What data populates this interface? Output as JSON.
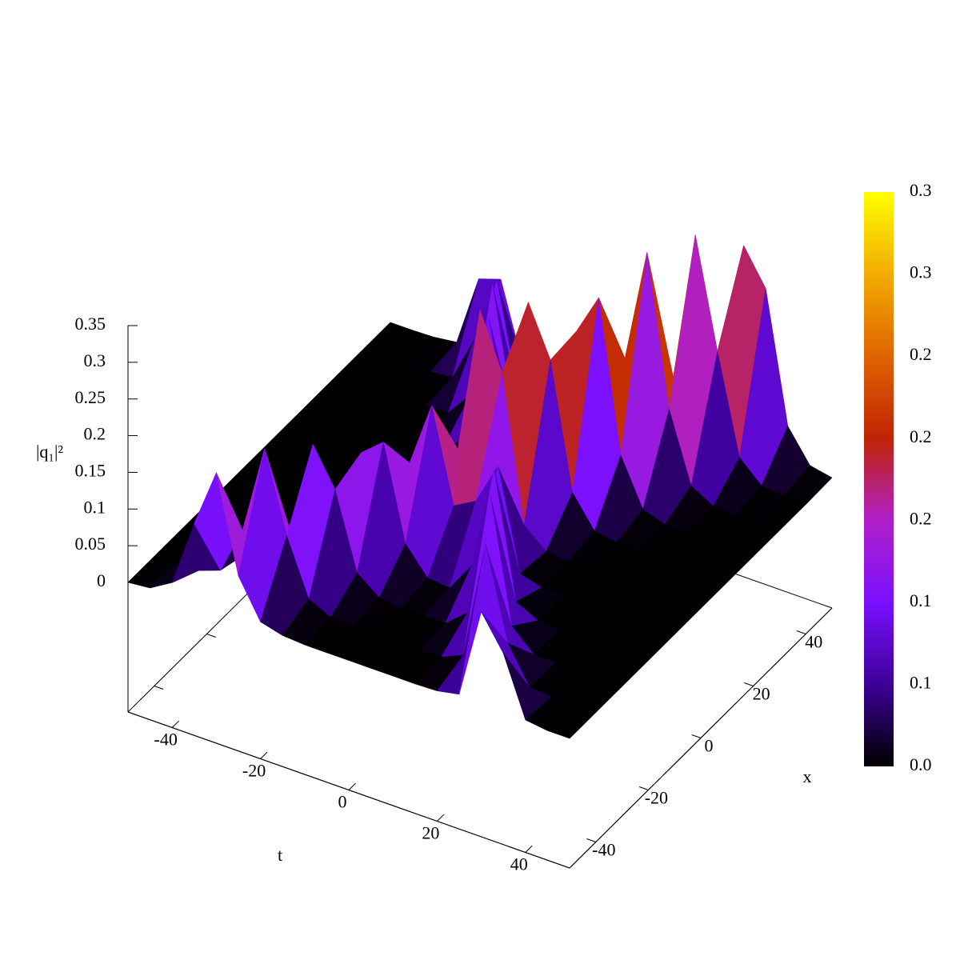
{
  "chart_data": {
    "type": "surface",
    "xlabel": "t",
    "ylabel": "x",
    "zlabel": "|q₁|²",
    "t": [
      -50,
      -45,
      -40,
      -35,
      -30,
      -25,
      -20,
      -15,
      -10,
      -5,
      0,
      5,
      10,
      15,
      20,
      25,
      30,
      35,
      40,
      45,
      50
    ],
    "x": [
      -50,
      -40,
      -30,
      -20,
      -10,
      0,
      10,
      20,
      30,
      40,
      50
    ],
    "z": [
      [
        0,
        0.003,
        0.021,
        0.112,
        0.192,
        0.062,
        0.01,
        0.002,
        0,
        0,
        0,
        0,
        0,
        0,
        0.001,
        0.007,
        0.13,
        0.084,
        0.004,
        0,
        0
      ],
      [
        0,
        0.001,
        0.002,
        0.013,
        0.078,
        0.2,
        0.092,
        0.016,
        0.002,
        0,
        0,
        0,
        0,
        0.001,
        0.014,
        0.176,
        0.052,
        0.002,
        0,
        0,
        0
      ],
      [
        0,
        0,
        0,
        0.001,
        0.007,
        0.05,
        0.181,
        0.13,
        0.027,
        0.004,
        0.001,
        0,
        0.001,
        0.026,
        0.2,
        0.029,
        0.001,
        0,
        0,
        0,
        0
      ],
      [
        0,
        0,
        0,
        0,
        0.001,
        0.005,
        0.032,
        0.145,
        0.17,
        0.042,
        0.006,
        0.003,
        0.044,
        0.186,
        0.016,
        0.001,
        0,
        0,
        0,
        0,
        0
      ],
      [
        0,
        0,
        0,
        0,
        0,
        0,
        0.003,
        0.02,
        0.106,
        0.195,
        0.069,
        0.086,
        0.144,
        0.008,
        0,
        0,
        0,
        0,
        0,
        0,
        0
      ],
      [
        0,
        0,
        0,
        0,
        0,
        0,
        0,
        0.002,
        0.016,
        0.1,
        0.3,
        0.225,
        0.028,
        0.003,
        0,
        0,
        0,
        0,
        0,
        0,
        0
      ],
      [
        0,
        0,
        0,
        0,
        0,
        0,
        0,
        0.001,
        0.012,
        0.173,
        0.137,
        0.286,
        0.218,
        0.048,
        0.006,
        0.001,
        0,
        0,
        0,
        0,
        0
      ],
      [
        0,
        0,
        0,
        0,
        0,
        0,
        0.001,
        0.021,
        0.2,
        0.035,
        0.009,
        0.048,
        0.222,
        0.278,
        0.074,
        0.011,
        0.001,
        0,
        0,
        0,
        0
      ],
      [
        0,
        0,
        0,
        0,
        0,
        0.001,
        0.036,
        0.196,
        0.02,
        0.001,
        0.001,
        0.004,
        0.03,
        0.16,
        0.315,
        0.112,
        0.018,
        0.001,
        0,
        0,
        0
      ],
      [
        0,
        0,
        0,
        0,
        0.003,
        0.066,
        0.157,
        0.01,
        0.001,
        0,
        0,
        0,
        0.001,
        0.017,
        0.109,
        0.314,
        0.166,
        0.032,
        0.004,
        0.001,
        0
      ],
      [
        0,
        0,
        0.001,
        0.005,
        0.102,
        0.112,
        0.006,
        0.001,
        0,
        0,
        0,
        0,
        0,
        0.001,
        0.01,
        0.07,
        0.275,
        0.227,
        0.05,
        0.007,
        0.001
      ]
    ],
    "tlim": [
      -50,
      50
    ],
    "tticks": [
      -40,
      -20,
      0,
      20,
      40
    ],
    "xlim": [
      -50,
      50
    ],
    "xticks": [
      -40,
      -20,
      0,
      20,
      40
    ],
    "zlim": [
      0,
      0.35
    ],
    "zticks": [
      0,
      0.05,
      0.1,
      0.15,
      0.2,
      0.25,
      0.3,
      0.35
    ],
    "cblim": [
      0,
      0.35
    ],
    "cbticks": [
      {
        "value": 0,
        "label": "0.0"
      },
      {
        "value": 0.05,
        "label": "0.1"
      },
      {
        "value": 0.1,
        "label": "0.1"
      },
      {
        "value": 0.15,
        "label": "0.2"
      },
      {
        "value": 0.2,
        "label": "0.2"
      },
      {
        "value": 0.25,
        "label": "0.2"
      },
      {
        "value": 0.3,
        "label": "0.3"
      },
      {
        "value": 0.35,
        "label": "0.3"
      }
    ],
    "palette": [
      "#000000",
      "#3c0098",
      "#7a10ff",
      "#b020c8",
      "#c02404",
      "#e06400",
      "#f2ac00",
      "#ffff00"
    ]
  }
}
